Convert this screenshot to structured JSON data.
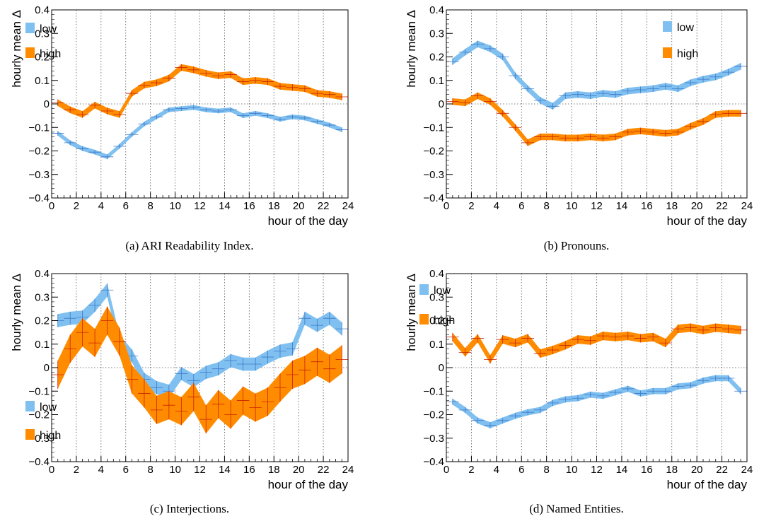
{
  "common": {
    "ylabel": "hourly mean Δ",
    "xlabel": "hour of the day",
    "xticks": [
      0,
      2,
      4,
      6,
      8,
      10,
      12,
      14,
      16,
      18,
      20,
      22,
      24
    ],
    "yticks": [
      -0.4,
      -0.3,
      -0.2,
      -0.1,
      0,
      0.1,
      0.2,
      0.3,
      0.4
    ],
    "ytick_labels": [
      "−0.4",
      "−0.3",
      "−0.2",
      "−0.1",
      "0",
      "0.1",
      "0.2",
      "0.3",
      "0.4"
    ],
    "colors": {
      "low": "#80c0f0",
      "high": "#ff8c00"
    }
  },
  "chart_data": [
    {
      "type": "area",
      "caption": "(a) ARI Readability Index.",
      "xlim": [
        0,
        24
      ],
      "ylim": [
        -0.4,
        0.4
      ],
      "grid": true,
      "legend_placement": "top-left",
      "x": [
        0.5,
        1.5,
        2.5,
        3.5,
        4.5,
        5.5,
        6.5,
        7.5,
        8.5,
        9.5,
        10.5,
        11.5,
        12.5,
        13.5,
        14.5,
        15.5,
        16.5,
        17.5,
        18.5,
        19.5,
        20.5,
        21.5,
        22.5,
        23.5
      ],
      "series": [
        {
          "name": "low",
          "color": "#80c0f0",
          "halfwidth": 0.01,
          "values": [
            -0.125,
            -0.165,
            -0.19,
            -0.205,
            -0.225,
            -0.18,
            -0.13,
            -0.085,
            -0.055,
            -0.025,
            -0.02,
            -0.015,
            -0.025,
            -0.03,
            -0.025,
            -0.05,
            -0.04,
            -0.05,
            -0.065,
            -0.055,
            -0.06,
            -0.075,
            -0.09,
            -0.11
          ]
        },
        {
          "name": "high",
          "color": "#ff8c00",
          "halfwidth": 0.014,
          "values": [
            0.005,
            -0.025,
            -0.045,
            -0.005,
            -0.03,
            -0.045,
            0.045,
            0.08,
            0.09,
            0.11,
            0.155,
            0.145,
            0.13,
            0.12,
            0.125,
            0.095,
            0.1,
            0.095,
            0.075,
            0.07,
            0.065,
            0.045,
            0.04,
            0.03
          ]
        }
      ]
    },
    {
      "type": "area",
      "caption": "(b) Pronouns.",
      "xlim": [
        0,
        24
      ],
      "ylim": [
        -0.4,
        0.4
      ],
      "grid": true,
      "legend_placement": "top-right",
      "x": [
        0.5,
        1.5,
        2.5,
        3.5,
        4.5,
        5.5,
        6.5,
        7.5,
        8.5,
        9.5,
        10.5,
        11.5,
        12.5,
        13.5,
        14.5,
        15.5,
        16.5,
        17.5,
        18.5,
        19.5,
        20.5,
        21.5,
        22.5,
        23.5
      ],
      "series": [
        {
          "name": "low",
          "color": "#80c0f0",
          "halfwidth": 0.014,
          "values": [
            0.18,
            0.22,
            0.255,
            0.235,
            0.2,
            0.12,
            0.065,
            0.015,
            -0.01,
            0.035,
            0.04,
            0.035,
            0.045,
            0.04,
            0.055,
            0.06,
            0.065,
            0.075,
            0.065,
            0.09,
            0.105,
            0.115,
            0.135,
            0.16
          ]
        },
        {
          "name": "high",
          "color": "#ff8c00",
          "halfwidth": 0.014,
          "values": [
            0.01,
            0.005,
            0.035,
            0.01,
            -0.04,
            -0.1,
            -0.165,
            -0.14,
            -0.14,
            -0.145,
            -0.145,
            -0.14,
            -0.145,
            -0.14,
            -0.12,
            -0.115,
            -0.12,
            -0.125,
            -0.12,
            -0.095,
            -0.075,
            -0.045,
            -0.04,
            -0.04
          ]
        }
      ]
    },
    {
      "type": "area",
      "caption": "(c) Interjections.",
      "xlim": [
        0,
        24
      ],
      "ylim": [
        -0.4,
        0.4
      ],
      "grid": true,
      "legend_placement": "bottom-left",
      "x": [
        0.5,
        1.5,
        2.5,
        3.5,
        4.5,
        5.5,
        6.5,
        7.5,
        8.5,
        9.5,
        10.5,
        11.5,
        12.5,
        13.5,
        14.5,
        15.5,
        16.5,
        17.5,
        18.5,
        19.5,
        20.5,
        21.5,
        22.5,
        23.5
      ],
      "series": [
        {
          "name": "low",
          "color": "#80c0f0",
          "halfwidth": 0.028,
          "values": [
            0.2,
            0.21,
            0.215,
            0.265,
            0.33,
            0.11,
            0.05,
            -0.05,
            -0.085,
            -0.1,
            -0.025,
            -0.055,
            -0.02,
            -0.005,
            0.03,
            0.015,
            0.015,
            0.045,
            0.07,
            0.08,
            0.21,
            0.18,
            0.21,
            0.165
          ]
        },
        {
          "name": "high",
          "color": "#ff8c00",
          "halfwidth": 0.06,
          "values": [
            -0.03,
            0.08,
            0.15,
            0.105,
            0.2,
            0.11,
            -0.05,
            -0.11,
            -0.18,
            -0.16,
            -0.185,
            -0.125,
            -0.22,
            -0.155,
            -0.2,
            -0.14,
            -0.17,
            -0.145,
            -0.085,
            -0.03,
            -0.01,
            0.025,
            -0.005,
            0.035
          ]
        }
      ]
    },
    {
      "type": "area",
      "caption": "(d) Named Entities.",
      "xlim": [
        0,
        24
      ],
      "ylim": [
        -0.4,
        0.4
      ],
      "grid": true,
      "legend_placement": "top-left",
      "x": [
        0.5,
        1.5,
        2.5,
        3.5,
        4.5,
        5.5,
        6.5,
        7.5,
        8.5,
        9.5,
        10.5,
        11.5,
        12.5,
        13.5,
        14.5,
        15.5,
        16.5,
        17.5,
        18.5,
        19.5,
        20.5,
        21.5,
        22.5,
        23.5
      ],
      "series": [
        {
          "name": "low",
          "color": "#80c0f0",
          "halfwidth": 0.013,
          "values": [
            -0.145,
            -0.18,
            -0.225,
            -0.245,
            -0.225,
            -0.205,
            -0.19,
            -0.18,
            -0.15,
            -0.135,
            -0.13,
            -0.115,
            -0.12,
            -0.105,
            -0.09,
            -0.11,
            -0.1,
            -0.1,
            -0.08,
            -0.075,
            -0.055,
            -0.045,
            -0.045,
            -0.1
          ]
        },
        {
          "name": "high",
          "color": "#ff8c00",
          "halfwidth": 0.018,
          "values": [
            0.13,
            0.065,
            0.125,
            0.035,
            0.12,
            0.105,
            0.125,
            0.06,
            0.075,
            0.095,
            0.12,
            0.115,
            0.135,
            0.13,
            0.135,
            0.125,
            0.13,
            0.105,
            0.165,
            0.17,
            0.16,
            0.17,
            0.165,
            0.16
          ]
        }
      ]
    }
  ]
}
